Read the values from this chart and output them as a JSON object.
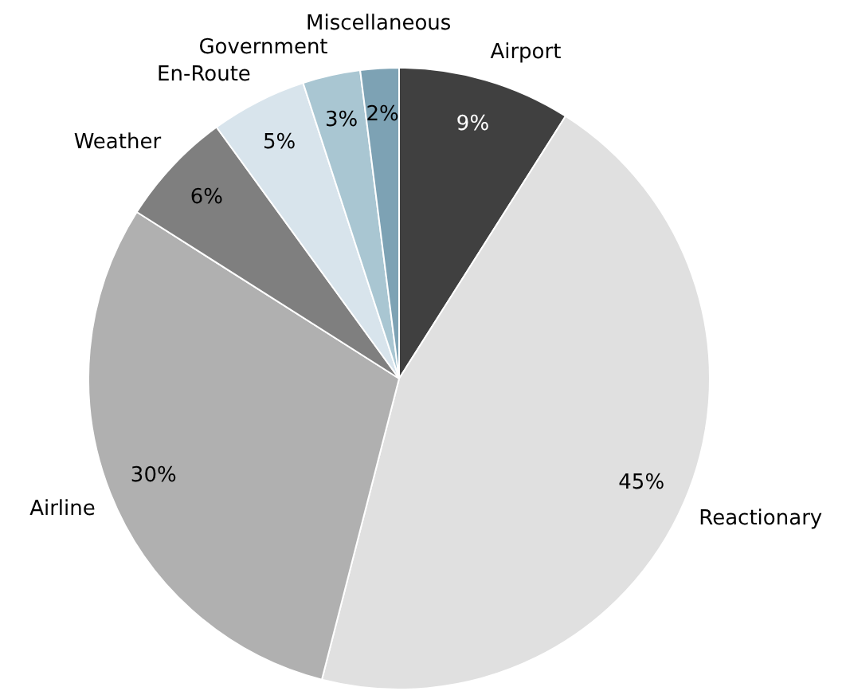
{
  "chart_data": {
    "type": "pie",
    "categories": [
      "Airport",
      "Reactionary",
      "Airline",
      "Weather",
      "En-Route",
      "Government",
      "Miscellaneous"
    ],
    "values": [
      9,
      45,
      30,
      6,
      5,
      3,
      2
    ],
    "colors": [
      "#404040",
      "#e0e0e0",
      "#b0b0b0",
      "#7f7f7f",
      "#d8e4ec",
      "#a9c6d2",
      "#7da2b4"
    ],
    "value_labels": [
      "9%",
      "45%",
      "30%",
      "6%",
      "5%",
      "3%",
      "2%"
    ],
    "legend": false
  }
}
